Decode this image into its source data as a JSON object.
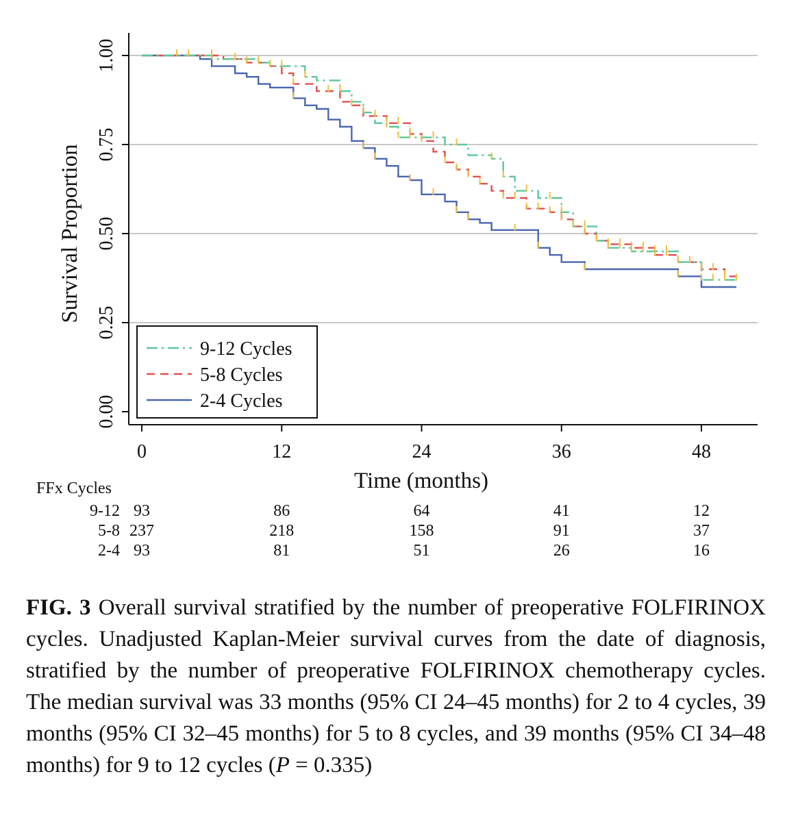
{
  "chart_data": {
    "type": "line",
    "subtype": "kaplan-meier",
    "ylabel": "Survival Proportion",
    "xlabel": "Time (months)",
    "xlim": [
      0,
      52
    ],
    "ylim": [
      0,
      1
    ],
    "xticks": [
      0,
      12,
      24,
      36,
      48
    ],
    "yticks": [
      "0.00",
      "0.25",
      "0.50",
      "0.75",
      "1.00"
    ],
    "ytick_values": [
      0,
      0.25,
      0.5,
      0.75,
      1.0
    ],
    "grid": "horizontal",
    "legend_position": "bottom-left",
    "series": [
      {
        "name": "9-12 Cycles",
        "color": "#5cc79a",
        "dash": "dashdot",
        "points": [
          [
            0,
            1.0
          ],
          [
            5,
            1.0
          ],
          [
            6,
            0.99
          ],
          [
            9,
            0.99
          ],
          [
            10,
            0.98
          ],
          [
            11,
            0.97
          ],
          [
            13,
            0.97
          ],
          [
            14,
            0.94
          ],
          [
            15,
            0.93
          ],
          [
            17,
            0.9
          ],
          [
            18,
            0.87
          ],
          [
            19,
            0.84
          ],
          [
            20,
            0.81
          ],
          [
            21,
            0.8
          ],
          [
            22,
            0.77
          ],
          [
            24,
            0.77
          ],
          [
            26,
            0.75
          ],
          [
            28,
            0.72
          ],
          [
            30,
            0.71
          ],
          [
            31,
            0.66
          ],
          [
            32,
            0.62
          ],
          [
            33,
            0.62
          ],
          [
            34,
            0.6
          ],
          [
            36,
            0.56
          ],
          [
            37,
            0.52
          ],
          [
            39,
            0.48
          ],
          [
            40,
            0.46
          ],
          [
            42,
            0.45
          ],
          [
            44,
            0.45
          ],
          [
            46,
            0.42
          ],
          [
            48,
            0.37
          ],
          [
            51,
            0.37
          ]
        ],
        "censor_times": [
          4,
          6,
          8,
          10,
          11,
          12,
          14,
          17,
          19,
          21,
          22,
          23,
          25,
          27,
          30,
          31,
          33,
          35,
          36,
          37,
          38,
          39,
          40,
          41,
          42,
          43,
          44,
          45,
          46,
          47,
          48,
          49,
          50
        ]
      },
      {
        "name": "5-8 Cycles",
        "color": "#e05050",
        "dash": "dashed",
        "points": [
          [
            0,
            1.0
          ],
          [
            5,
            1.0
          ],
          [
            7,
            0.99
          ],
          [
            9,
            0.98
          ],
          [
            11,
            0.97
          ],
          [
            12,
            0.95
          ],
          [
            13,
            0.92
          ],
          [
            15,
            0.9
          ],
          [
            17,
            0.87
          ],
          [
            18,
            0.86
          ],
          [
            19,
            0.83
          ],
          [
            21,
            0.81
          ],
          [
            23,
            0.78
          ],
          [
            24,
            0.76
          ],
          [
            25,
            0.73
          ],
          [
            26,
            0.7
          ],
          [
            27,
            0.68
          ],
          [
            28,
            0.66
          ],
          [
            29,
            0.64
          ],
          [
            30,
            0.62
          ],
          [
            31,
            0.6
          ],
          [
            33,
            0.57
          ],
          [
            35,
            0.56
          ],
          [
            36,
            0.54
          ],
          [
            37,
            0.52
          ],
          [
            38,
            0.5
          ],
          [
            39,
            0.48
          ],
          [
            40,
            0.47
          ],
          [
            42,
            0.46
          ],
          [
            44,
            0.44
          ],
          [
            46,
            0.42
          ],
          [
            48,
            0.4
          ],
          [
            50,
            0.38
          ],
          [
            51,
            0.37
          ]
        ],
        "censor_times": [
          3,
          6,
          8,
          9,
          10,
          11,
          13,
          16,
          18,
          20,
          21,
          22,
          23,
          24,
          26,
          27,
          28,
          29,
          31,
          32,
          33,
          34,
          35,
          36,
          37,
          38,
          39,
          40,
          41,
          42,
          43,
          44,
          45,
          46,
          47,
          48,
          49,
          50,
          51
        ]
      },
      {
        "name": "2-4 Cycles",
        "color": "#4a66b0",
        "dash": "solid",
        "points": [
          [
            0,
            1.0
          ],
          [
            4.5,
            1.0
          ],
          [
            5,
            0.99
          ],
          [
            6,
            0.97
          ],
          [
            8,
            0.95
          ],
          [
            9,
            0.94
          ],
          [
            10,
            0.92
          ],
          [
            11,
            0.91
          ],
          [
            12,
            0.91
          ],
          [
            13,
            0.88
          ],
          [
            14,
            0.86
          ],
          [
            15,
            0.85
          ],
          [
            16,
            0.82
          ],
          [
            17,
            0.8
          ],
          [
            18,
            0.76
          ],
          [
            19,
            0.74
          ],
          [
            20,
            0.71
          ],
          [
            21,
            0.69
          ],
          [
            22,
            0.66
          ],
          [
            23,
            0.65
          ],
          [
            24,
            0.61
          ],
          [
            26,
            0.59
          ],
          [
            27,
            0.56
          ],
          [
            28,
            0.54
          ],
          [
            29,
            0.53
          ],
          [
            30,
            0.51
          ],
          [
            33,
            0.51
          ],
          [
            34,
            0.46
          ],
          [
            35,
            0.44
          ],
          [
            36,
            0.42
          ],
          [
            38,
            0.4
          ],
          [
            45,
            0.4
          ],
          [
            46,
            0.38
          ],
          [
            48,
            0.35
          ],
          [
            51,
            0.35
          ]
        ],
        "censor_times": [
          13,
          19,
          20,
          23,
          25,
          27,
          28,
          32,
          34,
          38,
          46
        ]
      }
    ],
    "censor_color": "#f0c040",
    "risk_table": {
      "header": "FFx Cycles",
      "rows": [
        {
          "label": "9-12",
          "counts": [
            "93",
            "86",
            "64",
            "41",
            "12"
          ]
        },
        {
          "label": "5-8",
          "counts": [
            "237",
            "218",
            "158",
            "91",
            "37"
          ]
        },
        {
          "label": "2-4",
          "counts": [
            "93",
            "81",
            "51",
            "26",
            "16"
          ]
        }
      ]
    }
  },
  "caption": {
    "label": "FIG. 3",
    "text": "Overall survival stratified by the number of preoperative FOLFIRINOX cycles. Unadjusted Kaplan-Meier survival curves from the date of diagnosis, stratified by the number of preoperative FOLFIRINOX chemotherapy cycles. The median survival was 33 months (95% CI 24–45 months) for 2 to 4 cycles, 39 months (95% CI 32–45 months) for 5 to 8 cycles, and 39 months (95% CI 34–48 months) for 9 to 12 cycles (",
    "p_symbol": "P",
    "p_value_text": " = 0.335)"
  }
}
